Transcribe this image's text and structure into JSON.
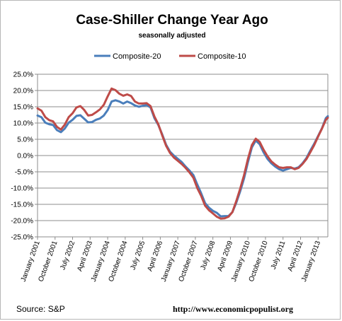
{
  "chart_data": {
    "type": "line",
    "title": "Case-Shiller Change Year Ago",
    "subtitle": "seasonally adjusted",
    "source": "Source: S&P",
    "url": "http://www.economicpopulist.org",
    "legend_position": "top-center",
    "grid": true,
    "ylim": [
      -25,
      25
    ],
    "y_ticks": [
      "25.0%",
      "20.0%",
      "15.0%",
      "10.0%",
      "5.0%",
      "0.0%",
      "-5.0%",
      "-10.0%",
      "-15.0%",
      "-20.0%",
      "-25.0%"
    ],
    "x_tick_labels": [
      "January 2001",
      "October 2001",
      "July 2002",
      "April 2003",
      "January 2004",
      "October 2004",
      "July 2005",
      "April 2006",
      "January 2007",
      "October 2007",
      "July 2008",
      "April 2009",
      "January 2010",
      "October 2010",
      "July 2011",
      "April 2012",
      "January 2013"
    ],
    "x_tick_dates": [
      "2001-01",
      "2001-10",
      "2002-07",
      "2003-04",
      "2004-01",
      "2004-10",
      "2005-07",
      "2006-04",
      "2007-01",
      "2007-10",
      "2008-07",
      "2009-04",
      "2010-01",
      "2010-10",
      "2011-07",
      "2012-04",
      "2013-01"
    ],
    "x_range": [
      "2001-01",
      "2013-06"
    ],
    "series": [
      {
        "name": "Composite-20",
        "color": "#4a7ebb",
        "dates": [
          "2001-01",
          "2001-03",
          "2001-05",
          "2001-07",
          "2001-09",
          "2001-11",
          "2002-01",
          "2002-03",
          "2002-05",
          "2002-07",
          "2002-09",
          "2002-11",
          "2003-01",
          "2003-03",
          "2003-05",
          "2003-07",
          "2003-09",
          "2003-11",
          "2004-01",
          "2004-03",
          "2004-05",
          "2004-07",
          "2004-09",
          "2004-11",
          "2005-01",
          "2005-03",
          "2005-05",
          "2005-07",
          "2005-09",
          "2005-11",
          "2006-01",
          "2006-03",
          "2006-05",
          "2006-07",
          "2006-09",
          "2006-11",
          "2007-01",
          "2007-03",
          "2007-05",
          "2007-07",
          "2007-09",
          "2007-11",
          "2008-01",
          "2008-03",
          "2008-05",
          "2008-07",
          "2008-09",
          "2008-11",
          "2009-01",
          "2009-03",
          "2009-05",
          "2009-07",
          "2009-09",
          "2009-11",
          "2010-01",
          "2010-03",
          "2010-05",
          "2010-07",
          "2010-09",
          "2010-11",
          "2011-01",
          "2011-03",
          "2011-05",
          "2011-07",
          "2011-09",
          "2011-11",
          "2012-01",
          "2012-03",
          "2012-05",
          "2012-07",
          "2012-09",
          "2012-11",
          "2013-01",
          "2013-03",
          "2013-05",
          "2013-06"
        ],
        "values": [
          12.3,
          11.8,
          10.1,
          9.6,
          9.4,
          7.8,
          7.2,
          8.3,
          10.1,
          11.0,
          12.2,
          12.4,
          11.3,
          10.2,
          10.3,
          11.0,
          11.4,
          12.3,
          14.0,
          16.6,
          17.0,
          16.6,
          16.0,
          16.6,
          16.1,
          15.4,
          15.0,
          15.3,
          15.5,
          14.8,
          11.5,
          9.4,
          6.5,
          3.3,
          1.2,
          0.0,
          -1.0,
          -2.0,
          -3.4,
          -4.6,
          -6.0,
          -8.9,
          -11.6,
          -14.6,
          -16.0,
          -17.0,
          -17.6,
          -18.7,
          -18.6,
          -18.6,
          -17.4,
          -14.5,
          -11.0,
          -7.0,
          -2.0,
          2.5,
          4.6,
          3.5,
          1.0,
          -1.0,
          -2.4,
          -3.4,
          -4.2,
          -4.6,
          -4.2,
          -3.8,
          -4.0,
          -3.6,
          -2.4,
          -0.8,
          1.5,
          3.6,
          6.0,
          8.4,
          11.5,
          12.1
        ]
      },
      {
        "name": "Composite-10",
        "color": "#be4b48",
        "dates": [
          "2001-01",
          "2001-03",
          "2001-05",
          "2001-07",
          "2001-09",
          "2001-11",
          "2002-01",
          "2002-03",
          "2002-05",
          "2002-07",
          "2002-09",
          "2002-11",
          "2003-01",
          "2003-03",
          "2003-05",
          "2003-07",
          "2003-09",
          "2003-11",
          "2004-01",
          "2004-03",
          "2004-05",
          "2004-07",
          "2004-09",
          "2004-11",
          "2005-01",
          "2005-03",
          "2005-05",
          "2005-07",
          "2005-09",
          "2005-11",
          "2006-01",
          "2006-03",
          "2006-05",
          "2006-07",
          "2006-09",
          "2006-11",
          "2007-01",
          "2007-03",
          "2007-05",
          "2007-07",
          "2007-09",
          "2007-11",
          "2008-01",
          "2008-03",
          "2008-05",
          "2008-07",
          "2008-09",
          "2008-11",
          "2009-01",
          "2009-03",
          "2009-05",
          "2009-07",
          "2009-09",
          "2009-11",
          "2010-01",
          "2010-03",
          "2010-05",
          "2010-07",
          "2010-09",
          "2010-11",
          "2011-01",
          "2011-03",
          "2011-05",
          "2011-07",
          "2011-09",
          "2011-11",
          "2012-01",
          "2012-03",
          "2012-05",
          "2012-07",
          "2012-09",
          "2012-11",
          "2013-01",
          "2013-03",
          "2013-05",
          "2013-06"
        ],
        "values": [
          14.5,
          13.8,
          11.8,
          10.9,
          10.5,
          8.8,
          8.0,
          9.5,
          11.8,
          13.0,
          14.8,
          15.2,
          14.0,
          12.3,
          12.5,
          13.3,
          14.2,
          15.6,
          18.2,
          20.6,
          20.1,
          19.0,
          18.4,
          18.8,
          18.3,
          16.6,
          16.0,
          16.0,
          16.1,
          15.2,
          12.0,
          9.6,
          6.2,
          3.0,
          0.8,
          -0.6,
          -1.6,
          -2.6,
          -3.8,
          -5.2,
          -6.8,
          -10.0,
          -12.4,
          -15.4,
          -16.8,
          -17.8,
          -18.8,
          -19.4,
          -19.3,
          -18.8,
          -17.4,
          -14.0,
          -10.2,
          -6.0,
          -1.0,
          3.2,
          5.2,
          4.2,
          1.8,
          -0.2,
          -1.8,
          -2.8,
          -3.6,
          -3.8,
          -3.6,
          -3.6,
          -4.2,
          -3.8,
          -2.6,
          -1.1,
          1.0,
          3.2,
          5.8,
          8.3,
          11.0,
          11.6
        ]
      }
    ]
  }
}
